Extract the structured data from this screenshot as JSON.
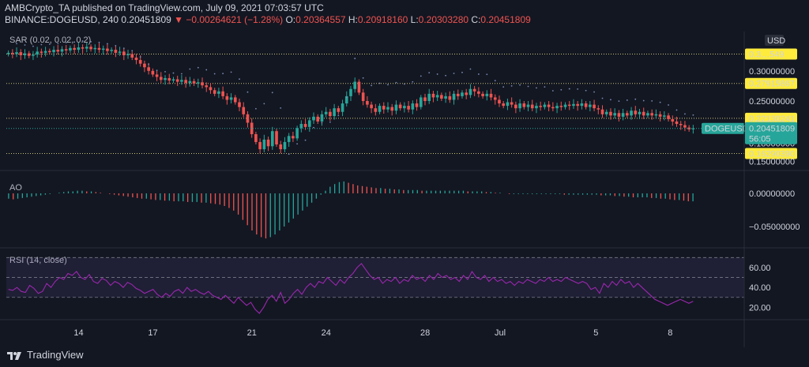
{
  "header": {
    "line1": "AMBCrypto_TA published on TradingView.com, July 09, 2021 07:03:57 UTC",
    "symbol": "BINANCE:DOGEUSD, 240",
    "last": "0.20451809",
    "change": "▼ −0.00264621 (−1.28%)",
    "o_label": "O:",
    "o": "0.20364557",
    "h_label": "H:",
    "h": "0.20918160",
    "l_label": "L:",
    "l": "0.20303280",
    "c_label": "C:",
    "c": "0.20451809"
  },
  "footer": {
    "brand": "TradingView"
  },
  "colors": {
    "up": "#26a69a",
    "down": "#ef5350",
    "sar": "#7a8bb5",
    "rsi": "#9c27b0",
    "bg": "#131722",
    "label_bg": "#ffeb3b"
  },
  "chart_data": [
    {
      "type": "candlestick",
      "title": "SAR (0.02, 0.02, 0.2)",
      "currency": "USD",
      "ylim": [
        0.14,
        0.36
      ],
      "y_ticks": [
        0.15,
        0.18,
        0.25,
        0.3
      ],
      "y_tick_labels": [
        "0.15000000",
        "0.18000000",
        "0.25000000",
        "0.30000000"
      ],
      "horizontal_levels": [
        {
          "value": 0.3279,
          "label": "0.3…549"
        },
        {
          "value": 0.27915867,
          "label": "0.27915867"
        },
        {
          "value": 0.22130241,
          "label": "0.22130241"
        },
        {
          "value": 0.1629039,
          "label": "0.16290390"
        }
      ],
      "current_price": {
        "symbol": "DOGEUSD",
        "value": 0.20451809,
        "label": "0.20451809",
        "countdown": "56:05"
      },
      "x_ticks": [
        "14",
        "17",
        "21",
        "24",
        "28",
        "Jul",
        "5",
        "8"
      ],
      "x_tick_index": [
        17,
        35,
        59,
        77,
        101,
        119,
        143,
        161
      ],
      "candles_close": [
        0.33,
        0.328,
        0.331,
        0.326,
        0.329,
        0.325,
        0.327,
        0.332,
        0.33,
        0.333,
        0.331,
        0.335,
        0.332,
        0.336,
        0.334,
        0.338,
        0.335,
        0.339,
        0.337,
        0.34,
        0.336,
        0.338,
        0.335,
        0.337,
        0.333,
        0.335,
        0.33,
        0.332,
        0.326,
        0.328,
        0.322,
        0.318,
        0.312,
        0.306,
        0.3,
        0.294,
        0.29,
        0.285,
        0.288,
        0.284,
        0.286,
        0.282,
        0.285,
        0.28,
        0.283,
        0.279,
        0.281,
        0.276,
        0.273,
        0.268,
        0.262,
        0.266,
        0.258,
        0.252,
        0.256,
        0.248,
        0.24,
        0.228,
        0.214,
        0.195,
        0.182,
        0.17,
        0.186,
        0.175,
        0.2,
        0.178,
        0.17,
        0.182,
        0.192,
        0.188,
        0.205,
        0.212,
        0.207,
        0.218,
        0.224,
        0.216,
        0.228,
        0.232,
        0.225,
        0.238,
        0.232,
        0.246,
        0.258,
        0.27,
        0.282,
        0.264,
        0.25,
        0.244,
        0.238,
        0.232,
        0.242,
        0.236,
        0.24,
        0.234,
        0.244,
        0.238,
        0.242,
        0.236,
        0.246,
        0.24,
        0.256,
        0.25,
        0.262,
        0.256,
        0.26,
        0.254,
        0.258,
        0.252,
        0.262,
        0.258,
        0.264,
        0.26,
        0.27,
        0.266,
        0.262,
        0.258,
        0.262,
        0.256,
        0.252,
        0.246,
        0.242,
        0.248,
        0.244,
        0.238,
        0.246,
        0.24,
        0.244,
        0.238,
        0.242,
        0.24,
        0.244,
        0.24,
        0.238,
        0.242,
        0.24,
        0.244,
        0.242,
        0.245,
        0.242,
        0.246,
        0.24,
        0.244,
        0.238,
        0.236,
        0.228,
        0.232,
        0.226,
        0.23,
        0.224,
        0.23,
        0.226,
        0.234,
        0.228,
        0.232,
        0.226,
        0.23,
        0.226,
        0.228,
        0.224,
        0.226,
        0.22,
        0.216,
        0.212,
        0.21,
        0.206,
        0.203,
        0.2045
      ],
      "sar_note": "dotted SAR markers above/below candles"
    },
    {
      "type": "histogram",
      "title": "AO",
      "ylim": [
        -0.075,
        0.025
      ],
      "y_ticks": [
        0.0,
        -0.05
      ],
      "y_tick_labels": [
        "0.00000000",
        "−0.05000000"
      ],
      "values": [
        -0.008,
        -0.009,
        -0.008,
        -0.007,
        -0.006,
        -0.005,
        -0.004,
        -0.003,
        -0.002,
        -0.001,
        0.0,
        0.001,
        0.002,
        0.003,
        0.003,
        0.004,
        0.004,
        0.003,
        0.003,
        0.002,
        0.001,
        0.0,
        -0.001,
        -0.002,
        -0.003,
        -0.004,
        -0.005,
        -0.006,
        -0.007,
        -0.008,
        -0.008,
        -0.009,
        -0.01,
        -0.01,
        -0.011,
        -0.011,
        -0.012,
        -0.012,
        -0.012,
        -0.013,
        -0.013,
        -0.013,
        -0.014,
        -0.014,
        -0.015,
        -0.016,
        -0.017,
        -0.019,
        -0.022,
        -0.026,
        -0.032,
        -0.04,
        -0.048,
        -0.056,
        -0.062,
        -0.066,
        -0.068,
        -0.066,
        -0.062,
        -0.056,
        -0.05,
        -0.044,
        -0.038,
        -0.032,
        -0.026,
        -0.02,
        -0.014,
        -0.008,
        -0.002,
        0.004,
        0.01,
        0.014,
        0.017,
        0.018,
        0.016,
        0.014,
        0.012,
        0.011,
        0.01,
        0.009,
        0.008,
        0.008,
        0.007,
        0.007,
        0.006,
        0.006,
        0.005,
        0.005,
        0.005,
        0.005,
        0.004,
        0.004,
        0.004,
        0.004,
        0.004,
        0.004,
        0.004,
        0.004,
        0.004,
        0.004,
        0.003,
        0.003,
        0.003,
        0.003,
        0.002,
        0.002,
        0.001,
        0.001,
        0.0,
        -0.001,
        -0.001,
        -0.001,
        -0.001,
        -0.001,
        -0.001,
        -0.001,
        -0.001,
        -0.001,
        -0.001,
        -0.001,
        -0.001,
        -0.002,
        -0.002,
        -0.002,
        -0.002,
        -0.002,
        -0.002,
        -0.002,
        -0.002,
        -0.003,
        -0.003,
        -0.003,
        -0.004,
        -0.004,
        -0.005,
        -0.005,
        -0.006,
        -0.006,
        -0.006,
        -0.006,
        -0.007,
        -0.007,
        -0.008,
        -0.008,
        -0.009,
        -0.01,
        -0.01,
        -0.011,
        -0.012,
        -0.012
      ]
    },
    {
      "type": "line",
      "title": "RSI (14, close)",
      "ylim": [
        10,
        75
      ],
      "y_ticks": [
        20,
        40,
        60
      ],
      "y_tick_labels": [
        "20.00",
        "40.00",
        "60.00"
      ],
      "band": [
        30,
        70
      ],
      "middle": 50,
      "values": [
        38,
        37,
        40,
        36,
        35,
        42,
        39,
        34,
        36,
        44,
        40,
        46,
        50,
        48,
        54,
        52,
        56,
        50,
        48,
        53,
        46,
        44,
        49,
        47,
        42,
        46,
        44,
        40,
        45,
        43,
        39,
        37,
        34,
        36,
        38,
        33,
        30,
        34,
        31,
        36,
        38,
        34,
        40,
        36,
        38,
        35,
        33,
        36,
        32,
        30,
        28,
        32,
        28,
        24,
        30,
        26,
        22,
        25,
        18,
        14,
        20,
        28,
        32,
        26,
        35,
        24,
        28,
        34,
        38,
        33,
        40,
        44,
        40,
        46,
        44,
        50,
        46,
        42,
        48,
        44,
        50,
        54,
        60,
        64,
        58,
        52,
        48,
        50,
        44,
        48,
        46,
        50,
        44,
        48,
        46,
        52,
        48,
        50,
        46,
        52,
        48,
        54,
        50,
        52,
        48,
        50,
        46,
        52,
        48,
        56,
        50,
        48,
        52,
        46,
        50,
        46,
        48,
        44,
        46,
        42,
        46,
        44,
        48,
        46,
        44,
        48,
        46,
        50,
        46,
        48,
        46,
        50,
        48,
        46,
        44,
        46,
        44,
        38,
        40,
        34,
        44,
        40,
        46,
        42,
        48,
        44,
        46,
        40,
        44,
        40,
        36,
        32,
        28,
        26,
        24,
        22,
        24,
        26,
        28,
        26,
        24,
        26
      ]
    }
  ]
}
